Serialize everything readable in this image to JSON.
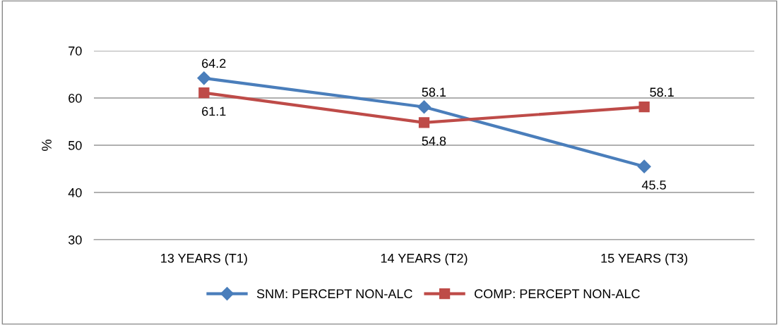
{
  "chart_data": {
    "type": "line",
    "ylabel": "%",
    "categories": [
      "13 YEARS (T1)",
      "14 YEARS (T2)",
      "15 YEARS (T3)"
    ],
    "series": [
      {
        "name": "SNM: PERCEPT NON-ALC",
        "color": "#4a7ebb",
        "marker": "diamond",
        "values": [
          64.2,
          58.1,
          45.5
        ]
      },
      {
        "name": "COMP: PERCEPT NON-ALC",
        "color": "#be4b48",
        "marker": "square",
        "values": [
          61.1,
          54.8,
          58.1
        ]
      }
    ],
    "ylim": [
      30,
      70
    ],
    "yticks": [
      30,
      40,
      50,
      60,
      70
    ],
    "grid": "y",
    "legend": "bottom",
    "data_labels": true,
    "line_style": "solid"
  }
}
